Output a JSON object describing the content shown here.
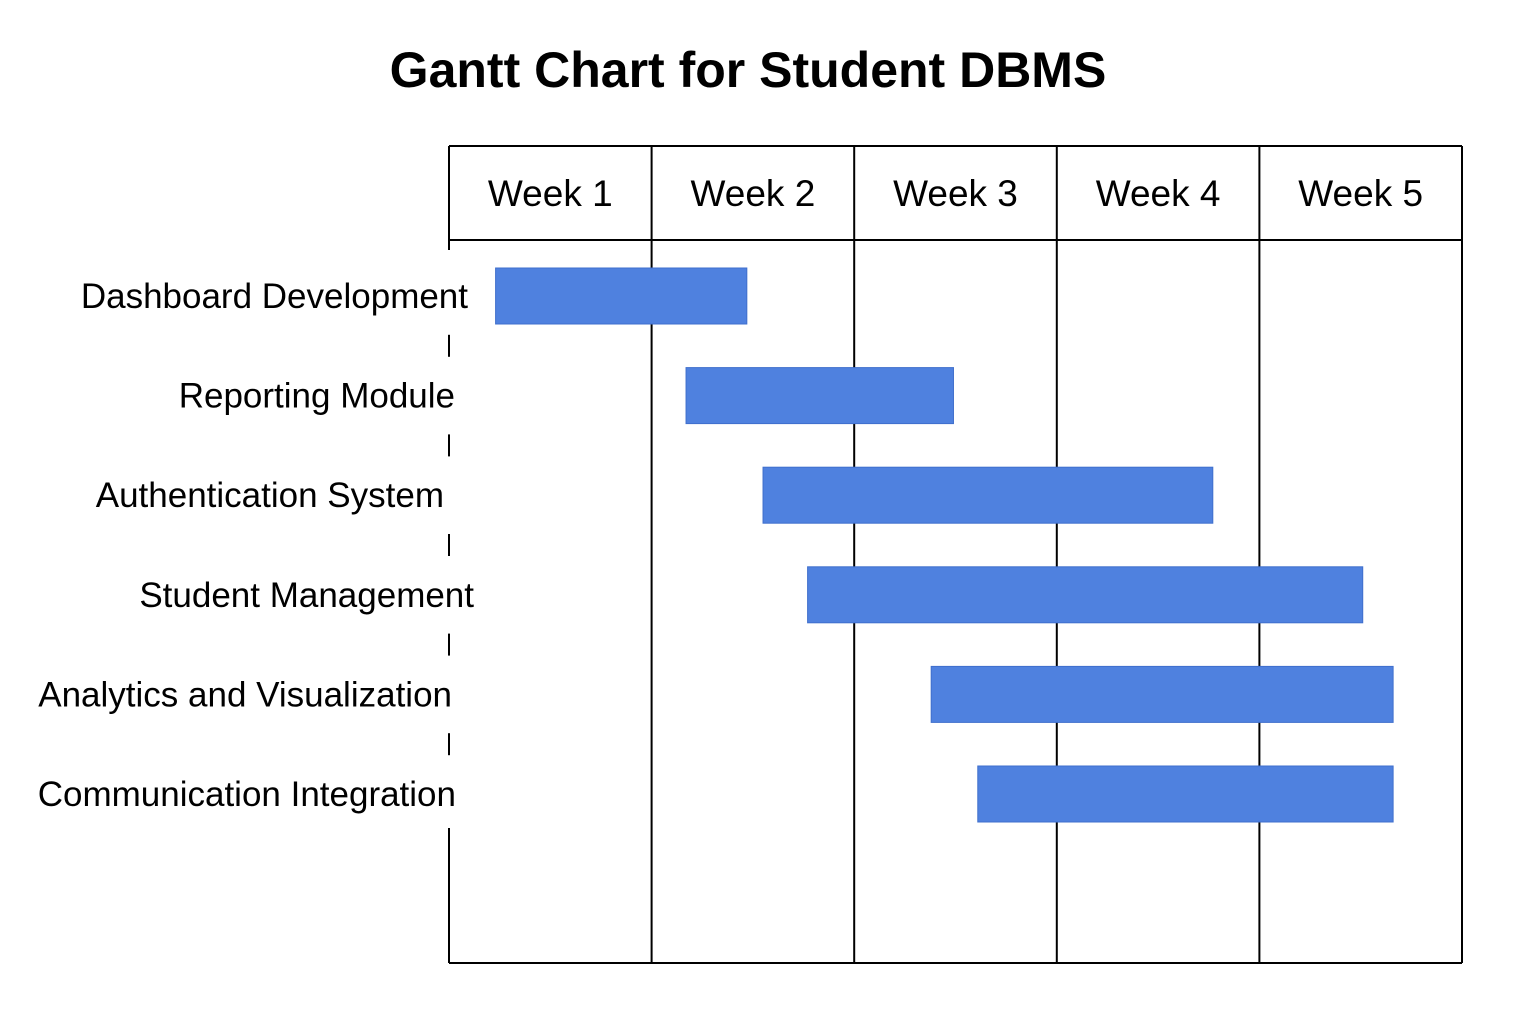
{
  "chart_data": {
    "type": "gantt",
    "title": "Gantt Chart for Student DBMS",
    "columns": [
      "Week 1",
      "Week 2",
      "Week 3",
      "Week 4",
      "Week 5"
    ],
    "x_range": [
      0,
      5
    ],
    "tasks": [
      {
        "name": "Dashboard Development",
        "start": 0.23,
        "end": 1.47
      },
      {
        "name": "Reporting Module",
        "start": 1.17,
        "end": 2.49
      },
      {
        "name": "Authentication System",
        "start": 1.55,
        "end": 3.77
      },
      {
        "name": "Student Management",
        "start": 1.77,
        "end": 4.51
      },
      {
        "name": "Analytics and Visualization",
        "start": 2.38,
        "end": 4.66
      },
      {
        "name": "Communication Integration",
        "start": 2.61,
        "end": 4.66
      }
    ],
    "colors": {
      "bar": "#4f81df",
      "line": "#000000"
    },
    "grid": true
  }
}
